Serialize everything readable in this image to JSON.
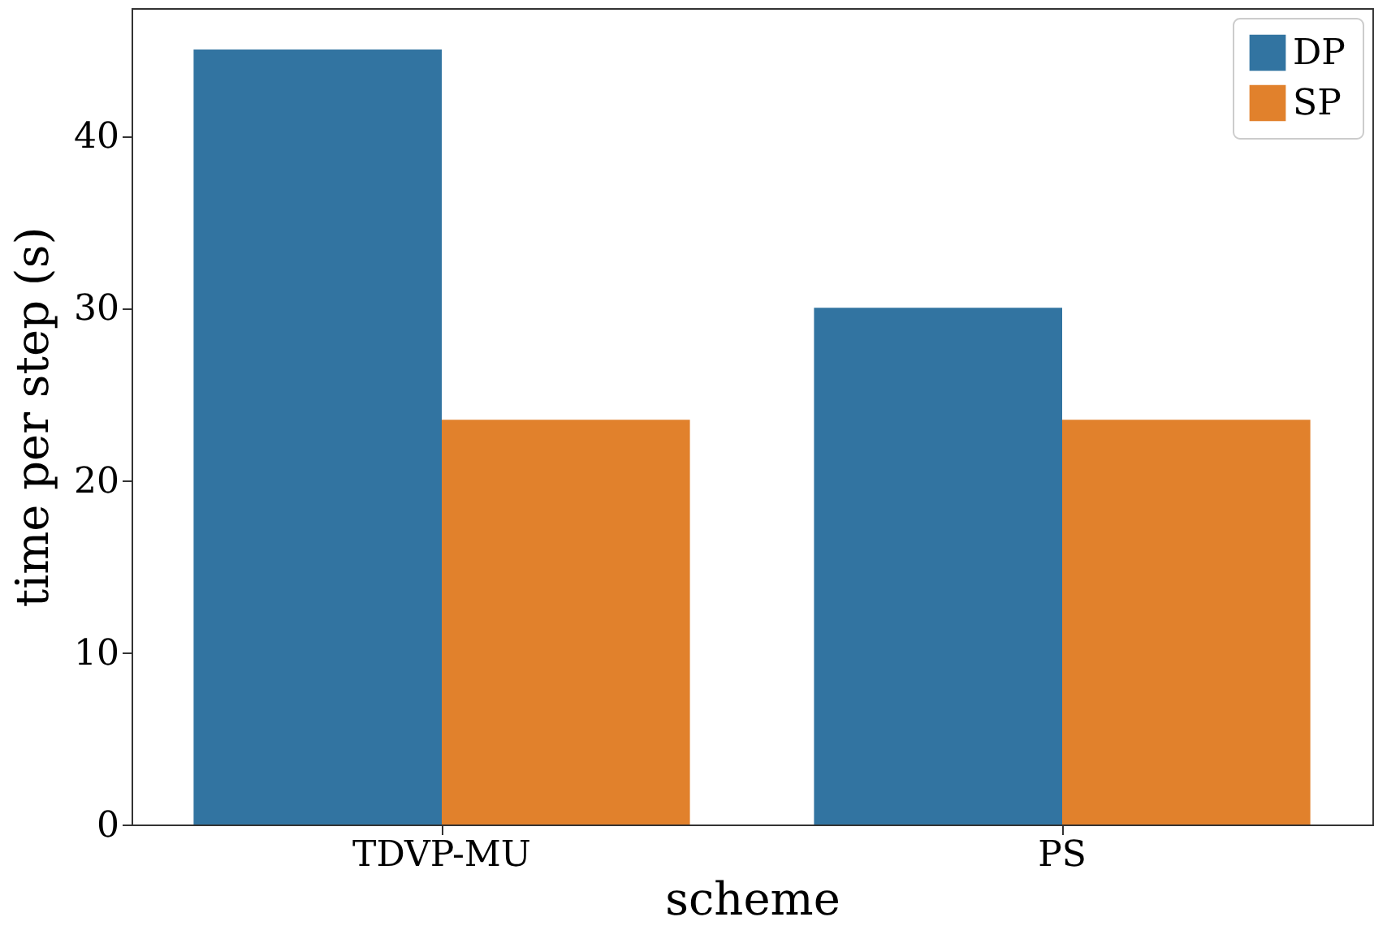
{
  "chart_data": {
    "type": "bar",
    "xlabel": "scheme",
    "ylabel": "time per step (s)",
    "categories": [
      "TDVP-MU",
      "PS"
    ],
    "series": [
      {
        "name": "DP",
        "color": "#3274a1",
        "values": [
          45,
          30
        ]
      },
      {
        "name": "SP",
        "color": "#e1812c",
        "values": [
          23.5,
          23.5
        ]
      }
    ],
    "ylim": [
      0,
      47.4
    ],
    "yticks": [
      0,
      10,
      20,
      30,
      40
    ],
    "grid": false,
    "legend": "top right"
  }
}
